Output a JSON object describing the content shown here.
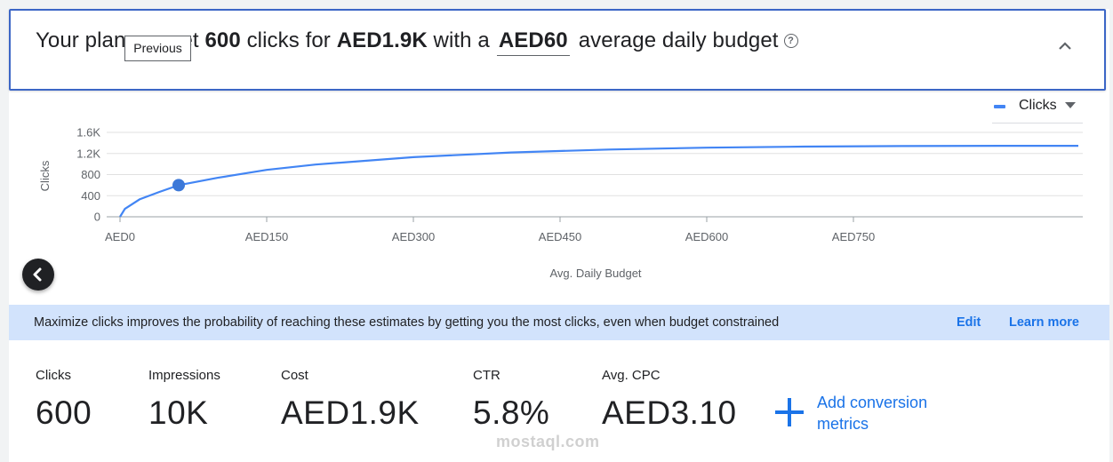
{
  "header": {
    "text_before_tooltip": "Your plan",
    "text_after_tooltip": "et",
    "clicks": "600",
    "text_clicks_for": "clicks for",
    "cost": "AED1.9K",
    "text_with_a": "with a",
    "daily_budget": "AED60",
    "text_tail": "average daily budget",
    "help_icon": "help-circle-icon",
    "collapse_icon": "chevron-up-icon"
  },
  "tooltip": {
    "label": "Previous"
  },
  "legend": {
    "label": "Clicks",
    "color": "#4285f4"
  },
  "chart_data": {
    "type": "line",
    "ylabel": "Clicks",
    "xlabel": "Avg. Daily Budget",
    "y_ticks": [
      "0",
      "400",
      "800",
      "1.2K",
      "1.6K"
    ],
    "x_ticks": [
      "AED0",
      "AED150",
      "AED300",
      "AED450",
      "AED600",
      "AED750"
    ],
    "ylim": [
      0,
      1600
    ],
    "xlim": [
      0,
      980
    ],
    "grid": true,
    "series": [
      {
        "name": "Clicks",
        "color": "#4285f4",
        "x": [
          0,
          5,
          20,
          40,
          60,
          100,
          150,
          200,
          300,
          400,
          500,
          600,
          700,
          800,
          900,
          980
        ],
        "y": [
          0,
          150,
          330,
          470,
          600,
          740,
          890,
          990,
          1130,
          1220,
          1275,
          1310,
          1330,
          1340,
          1345,
          1345
        ]
      }
    ],
    "highlight_point": {
      "x": 60,
      "y": 600
    }
  },
  "prev_button": {
    "icon": "chevron-left-icon"
  },
  "banner": {
    "message": "Maximize clicks improves the probability of reaching these estimates by getting you the most clicks, even when budget constrained",
    "edit": "Edit",
    "learn_more": "Learn more",
    "color": "#d2e3fc"
  },
  "metrics": [
    {
      "label": "Clicks",
      "value": "600"
    },
    {
      "label": "Impressions",
      "value": "10K"
    },
    {
      "label": "Cost",
      "value": "AED1.9K"
    },
    {
      "label": "CTR",
      "value": "5.8%"
    },
    {
      "label": "Avg. CPC",
      "value": "AED3.10"
    }
  ],
  "add_conversion": {
    "line1": "Add conversion",
    "line2": "metrics",
    "icon": "plus-icon"
  },
  "watermark": "mostaql.com",
  "accent_color": "#1a73e8"
}
